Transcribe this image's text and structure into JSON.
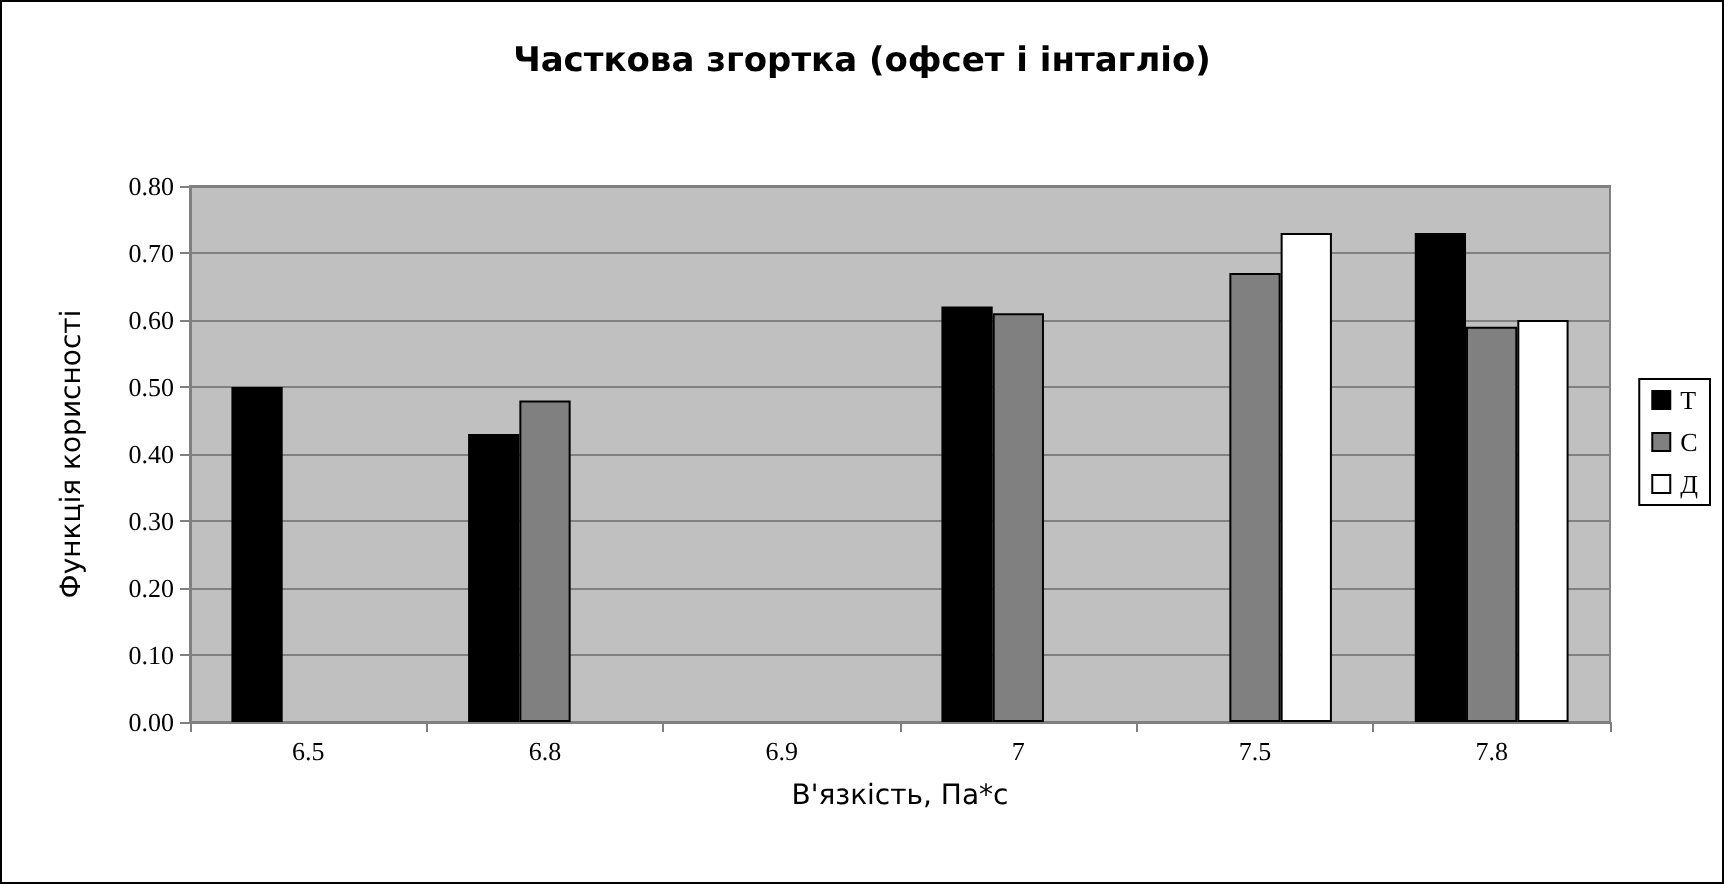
{
  "chart_data": {
    "type": "bar",
    "title": "Часткова згортка (офсет і інтагліо)",
    "xlabel": "В'язкість, Па*с",
    "ylabel": "Функція корисності",
    "categories": [
      "6.5",
      "6.8",
      "6.9",
      "7",
      "7.5",
      "7.8"
    ],
    "series": [
      {
        "name": "Т",
        "color": "#000000",
        "values": [
          0.5,
          0.43,
          null,
          0.62,
          null,
          0.73
        ]
      },
      {
        "name": "С",
        "color": "#808080",
        "values": [
          null,
          0.48,
          null,
          0.61,
          0.67,
          0.59
        ]
      },
      {
        "name": "Д",
        "color": "#ffffff",
        "values": [
          null,
          null,
          null,
          null,
          0.73,
          0.6
        ]
      }
    ],
    "ylim": [
      0,
      0.8
    ],
    "yticks": [
      {
        "value": 0,
        "label": "0.00"
      },
      {
        "value": 0.1,
        "label": "0.10"
      },
      {
        "value": 0.2,
        "label": "0.20"
      },
      {
        "value": 0.3,
        "label": "0.30"
      },
      {
        "value": 0.4,
        "label": "0.40"
      },
      {
        "value": 0.5,
        "label": "0.50"
      },
      {
        "value": 0.6,
        "label": "0.60"
      },
      {
        "value": 0.7,
        "label": "0.70"
      },
      {
        "value": 0.8,
        "label": "0.80"
      }
    ],
    "grid": "y",
    "legend": "right"
  }
}
